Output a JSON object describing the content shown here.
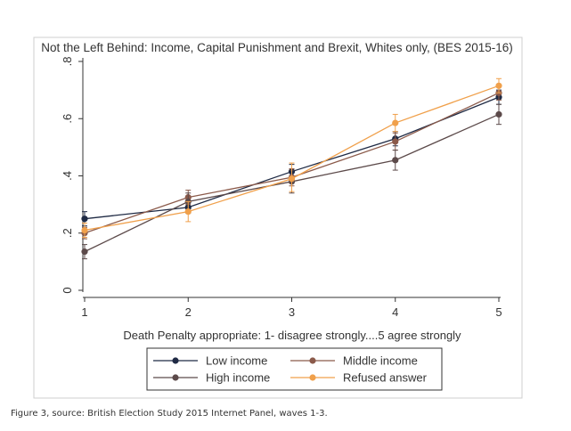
{
  "caption": "Figure 3, source: British Election Study 2015 Internet Panel, waves 1-3.",
  "chart_data": {
    "type": "line",
    "title": "Not the Left Behind: Income, Capital Punishment and Brexit, Whites only, (BES 2015-16)",
    "xlabel": "Death Penalty appropriate: 1- disagree strongly....5 agree strongly",
    "ylabel": "",
    "x": [
      1,
      2,
      3,
      4,
      5
    ],
    "xticks": [
      1,
      2,
      3,
      4,
      5
    ],
    "xtick_labels": [
      "1",
      "2",
      "3",
      "4",
      "5"
    ],
    "yticks": [
      0,
      0.2,
      0.4,
      0.6,
      0.8
    ],
    "ytick_labels": [
      "0",
      ".2",
      ".4",
      ".6",
      ".8"
    ],
    "xlim": [
      1,
      5
    ],
    "ylim": [
      0,
      0.8
    ],
    "grid": "none",
    "legend_placement": "bottom",
    "series": [
      {
        "name": "Low income",
        "color": "#1f2a44",
        "values": [
          0.25,
          0.29,
          0.415,
          0.53,
          0.675
        ],
        "ci": [
          [
            0.225,
            0.275
          ],
          [
            0.27,
            0.31
          ],
          [
            0.39,
            0.44
          ],
          [
            0.505,
            0.555
          ],
          [
            0.65,
            0.7
          ]
        ]
      },
      {
        "name": "Middle income",
        "color": "#8b5a4a",
        "values": [
          0.2,
          0.325,
          0.395,
          0.52,
          0.69
        ],
        "ci": [
          [
            0.18,
            0.22
          ],
          [
            0.3,
            0.35
          ],
          [
            0.365,
            0.425
          ],
          [
            0.49,
            0.55
          ],
          [
            0.665,
            0.715
          ]
        ]
      },
      {
        "name": "High income",
        "color": "#5c4a4a",
        "values": [
          0.135,
          0.31,
          0.38,
          0.455,
          0.615
        ],
        "ci": [
          [
            0.11,
            0.16
          ],
          [
            0.28,
            0.34
          ],
          [
            0.34,
            0.42
          ],
          [
            0.42,
            0.49
          ],
          [
            0.58,
            0.65
          ]
        ]
      },
      {
        "name": "Refused answer",
        "color": "#f0a04b",
        "values": [
          0.21,
          0.275,
          0.39,
          0.585,
          0.715
        ],
        "ci": [
          [
            0.185,
            0.235
          ],
          [
            0.24,
            0.31
          ],
          [
            0.345,
            0.445
          ],
          [
            0.555,
            0.615
          ],
          [
            0.69,
            0.74
          ]
        ]
      }
    ]
  }
}
